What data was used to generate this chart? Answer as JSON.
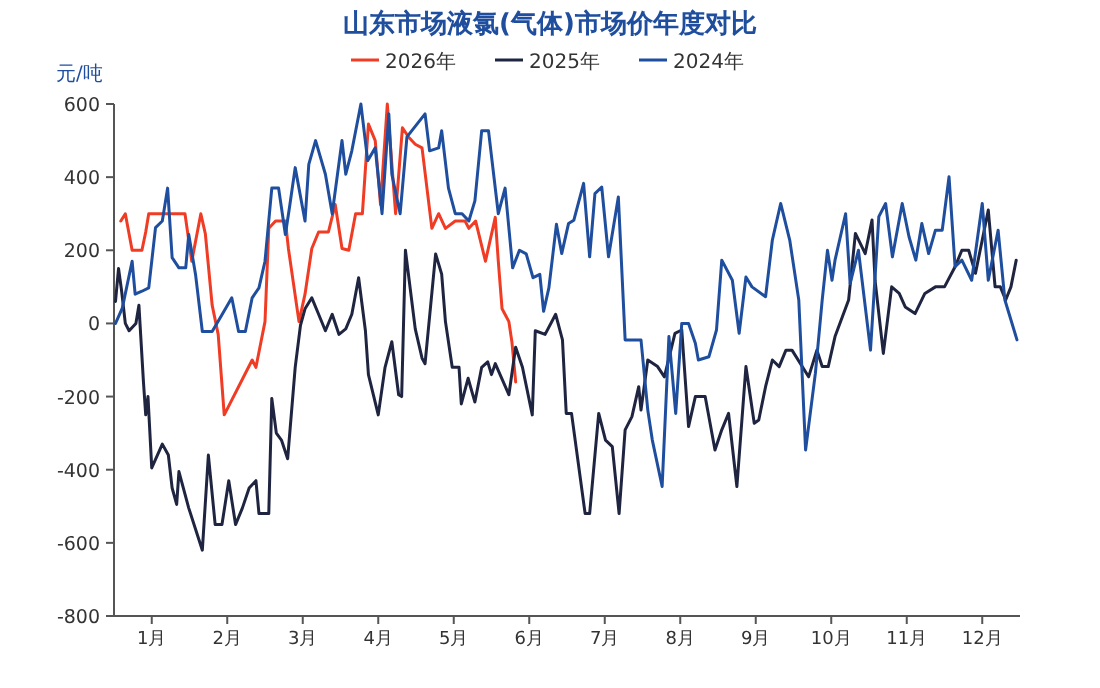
{
  "chart_data": {
    "type": "line",
    "title": "山东市场液氯(气体)市场价年度对比",
    "ylabel": "元/吨",
    "legend": "top",
    "grid": false,
    "marker": "none",
    "line_style": "solid",
    "xlim": [
      0.5,
      12.5
    ],
    "ylim": [
      -800,
      600
    ],
    "yticks": [
      -800,
      -600,
      -400,
      -200,
      0,
      200,
      400,
      600
    ],
    "xticks": [
      {
        "value": 1,
        "label": "1月"
      },
      {
        "value": 2,
        "label": "2月"
      },
      {
        "value": 3,
        "label": "3月"
      },
      {
        "value": 4,
        "label": "4月"
      },
      {
        "value": 5,
        "label": "5月"
      },
      {
        "value": 6,
        "label": "6月"
      },
      {
        "value": 7,
        "label": "7月"
      },
      {
        "value": 8,
        "label": "8月"
      },
      {
        "value": 9,
        "label": "9月"
      },
      {
        "value": 10,
        "label": "10月"
      },
      {
        "value": 11,
        "label": "11月"
      },
      {
        "value": 12,
        "label": "12月"
      }
    ],
    "series": [
      {
        "name": "2026年",
        "color": "#f03c24",
        "x": [
          0.59,
          0.65,
          0.74,
          0.87,
          0.92,
          0.96,
          1.44,
          1.53,
          1.65,
          1.71,
          1.8,
          1.88,
          1.96,
          2.33,
          2.38,
          2.5,
          2.55,
          2.64,
          2.77,
          2.81,
          2.95,
          3.03,
          3.12,
          3.21,
          3.34,
          3.43,
          3.52,
          3.61,
          3.7,
          3.79,
          3.87,
          3.96,
          4.03,
          4.12,
          4.23,
          4.32,
          4.4,
          4.49,
          4.58,
          4.71,
          4.8,
          4.89,
          5.02,
          5.15,
          5.2,
          5.29,
          5.42,
          5.55,
          5.59,
          5.64,
          5.73,
          5.77,
          5.82
        ],
        "values": [
          280,
          300,
          200,
          200,
          250,
          300,
          300,
          170,
          300,
          245,
          50,
          -30,
          -250,
          -100,
          -120,
          5,
          260,
          280,
          280,
          205,
          5,
          80,
          205,
          250,
          250,
          325,
          205,
          200,
          300,
          300,
          545,
          500,
          325,
          600,
          300,
          535,
          510,
          490,
          480,
          260,
          300,
          260,
          280,
          280,
          260,
          280,
          170,
          290,
          170,
          40,
          5,
          -50,
          -160
        ]
      },
      {
        "name": "2025年",
        "color": "#1f2540",
        "x": [
          0.52,
          0.56,
          0.6,
          0.65,
          0.7,
          0.79,
          0.83,
          0.89,
          0.92,
          0.95,
          1.0,
          1.14,
          1.22,
          1.27,
          1.33,
          1.36,
          1.49,
          1.67,
          1.75,
          1.84,
          1.93,
          2.02,
          2.11,
          2.2,
          2.29,
          2.38,
          2.42,
          2.55,
          2.59,
          2.65,
          2.72,
          2.8,
          2.9,
          2.97,
          3.03,
          3.12,
          3.21,
          3.3,
          3.39,
          3.48,
          3.57,
          3.65,
          3.74,
          3.83,
          3.87,
          4.0,
          4.09,
          4.18,
          4.27,
          4.31,
          4.36,
          4.49,
          4.58,
          4.62,
          4.76,
          4.84,
          4.89,
          4.98,
          5.07,
          5.1,
          5.19,
          5.28,
          5.37,
          5.45,
          5.5,
          5.55,
          5.73,
          5.82,
          5.91,
          6.04,
          6.08,
          6.21,
          6.35,
          6.44,
          6.49,
          6.56,
          6.74,
          6.8,
          6.92,
          7.01,
          7.1,
          7.19,
          7.27,
          7.36,
          7.45,
          7.48,
          7.57,
          7.7,
          7.79,
          7.93,
          8.02,
          8.11,
          8.2,
          8.33,
          8.46,
          8.55,
          8.64,
          8.75,
          8.87,
          8.98,
          9.04,
          9.13,
          9.22,
          9.31,
          9.4,
          9.48,
          9.7,
          9.81,
          9.88,
          9.96,
          10.05,
          10.23,
          10.32,
          10.45,
          10.54,
          10.58,
          10.69,
          10.8,
          10.9,
          10.98,
          11.11,
          11.24,
          11.38,
          11.5,
          11.64,
          11.73,
          11.82,
          11.91,
          12.0,
          12.08,
          12.17,
          12.24,
          12.31,
          12.38,
          12.45
        ],
        "values": [
          60,
          150,
          90,
          0,
          -20,
          0,
          50,
          -160,
          -250,
          -200,
          -395,
          -330,
          -360,
          -450,
          -495,
          -405,
          -505,
          -620,
          -360,
          -550,
          -550,
          -430,
          -550,
          -505,
          -450,
          -430,
          -520,
          -520,
          -205,
          -300,
          -320,
          -370,
          -120,
          -5,
          40,
          70,
          25,
          -20,
          25,
          -30,
          -15,
          25,
          125,
          -20,
          -140,
          -250,
          -120,
          -50,
          -195,
          -200,
          200,
          -15,
          -95,
          -110,
          190,
          135,
          5,
          -120,
          -120,
          -220,
          -150,
          -215,
          -120,
          -105,
          -140,
          -110,
          -195,
          -65,
          -120,
          -250,
          -20,
          -30,
          25,
          -45,
          -246,
          -246,
          -520,
          -520,
          -246,
          -319,
          -337,
          -520,
          -291,
          -255,
          -173,
          -237,
          -100,
          -118,
          -146,
          -27,
          -18,
          -282,
          -200,
          -200,
          -346,
          -291,
          -246,
          -446,
          -118,
          -273,
          -264,
          -173,
          -100,
          -118,
          -73,
          -73,
          -146,
          -73,
          -118,
          -118,
          -36,
          64,
          246,
          191,
          283,
          118,
          -82,
          100,
          82,
          45,
          27,
          82,
          100,
          100,
          155,
          200,
          200,
          137,
          228,
          310,
          100,
          100,
          64,
          100,
          173
        ]
      },
      {
        "name": "2024年",
        "color": "#1f4e9e",
        "x": [
          0.52,
          0.61,
          0.74,
          0.78,
          0.87,
          0.96,
          1.05,
          1.14,
          1.21,
          1.27,
          1.36,
          1.45,
          1.49,
          1.58,
          1.67,
          1.8,
          1.93,
          2.06,
          2.15,
          2.24,
          2.33,
          2.42,
          2.5,
          2.59,
          2.68,
          2.77,
          2.83,
          2.9,
          3.03,
          3.08,
          3.17,
          3.3,
          3.39,
          3.52,
          3.57,
          3.65,
          3.77,
          3.86,
          3.96,
          4.05,
          4.14,
          4.18,
          4.29,
          4.38,
          4.62,
          4.68,
          4.8,
          4.84,
          4.93,
          5.02,
          5.11,
          5.2,
          5.28,
          5.37,
          5.46,
          5.59,
          5.68,
          5.78,
          5.87,
          5.96,
          6.05,
          6.14,
          6.19,
          6.26,
          6.36,
          6.43,
          6.52,
          6.59,
          6.72,
          6.8,
          6.87,
          6.96,
          7.05,
          7.18,
          7.27,
          7.4,
          7.48,
          7.57,
          7.63,
          7.76,
          7.85,
          7.94,
          8.02,
          8.11,
          8.2,
          8.24,
          8.38,
          8.48,
          8.55,
          8.69,
          8.78,
          8.87,
          8.95,
          9.13,
          9.22,
          9.33,
          9.45,
          9.57,
          9.66,
          9.79,
          9.88,
          9.95,
          10.01,
          10.05,
          10.19,
          10.25,
          10.36,
          10.52,
          10.63,
          10.72,
          10.81,
          10.94,
          11.03,
          11.12,
          11.2,
          11.29,
          11.38,
          11.47,
          11.56,
          11.64,
          11.73,
          11.86,
          12.0,
          12.08,
          12.21,
          12.3,
          12.46
        ],
        "values": [
          0,
          42,
          170,
          80,
          88,
          97,
          262,
          280,
          370,
          180,
          152,
          152,
          243,
          134,
          -22,
          -22,
          24,
          70,
          -22,
          -22,
          70,
          97,
          170,
          370,
          370,
          243,
          325,
          426,
          280,
          435,
          500,
          408,
          300,
          500,
          408,
          472,
          600,
          445,
          480,
          300,
          573,
          408,
          300,
          510,
          573,
          472,
          480,
          527,
          370,
          300,
          300,
          280,
          335,
          527,
          527,
          300,
          370,
          152,
          200,
          190,
          125,
          134,
          33,
          97,
          271,
          191,
          273,
          282,
          383,
          182,
          355,
          373,
          182,
          346,
          -45,
          -45,
          -45,
          -237,
          -319,
          -446,
          -36,
          -246,
          0,
          0,
          -54,
          -100,
          -91,
          -18,
          173,
          118,
          -27,
          127,
          100,
          73,
          228,
          328,
          228,
          64,
          -346,
          -136,
          64,
          200,
          118,
          173,
          300,
          109,
          200,
          -73,
          292,
          328,
          182,
          328,
          237,
          173,
          273,
          191,
          255,
          255,
          401,
          155,
          173,
          118,
          328,
          118,
          255,
          64,
          -45
        ]
      }
    ]
  }
}
